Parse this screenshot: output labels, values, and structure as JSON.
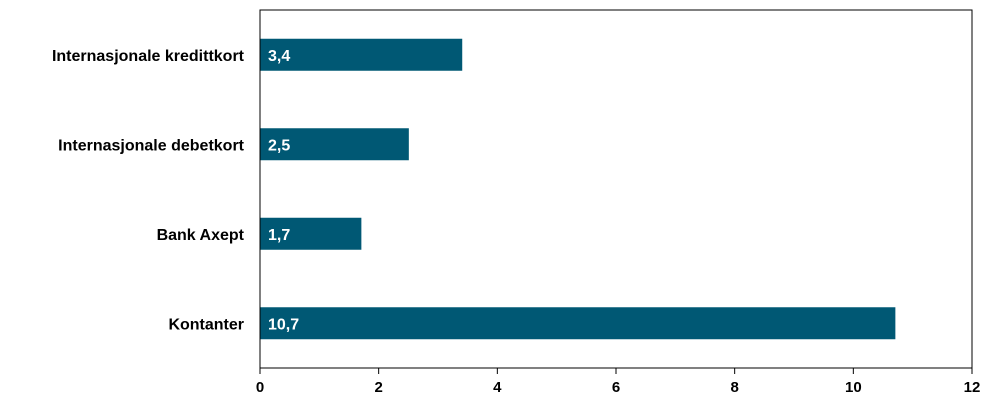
{
  "chart_data": {
    "type": "bar",
    "orientation": "horizontal",
    "title": "",
    "xlabel": "",
    "ylabel": "",
    "categories": [
      "Internasjonale kredittkort",
      "Internasjonale debetkort",
      "Bank Axept",
      "Kontanter"
    ],
    "values": [
      3.4,
      2.5,
      1.7,
      10.7
    ],
    "data_labels": [
      "3,4",
      "2,5",
      "1,7",
      "10,7"
    ],
    "xlim": [
      0,
      12
    ],
    "x_ticks": [
      0,
      2,
      4,
      6,
      8,
      10,
      12
    ],
    "x_tick_labels": [
      "0",
      "2",
      "4",
      "6",
      "8",
      "10",
      "12"
    ],
    "grid": false,
    "legend": "none",
    "bar_color": "#005874"
  }
}
